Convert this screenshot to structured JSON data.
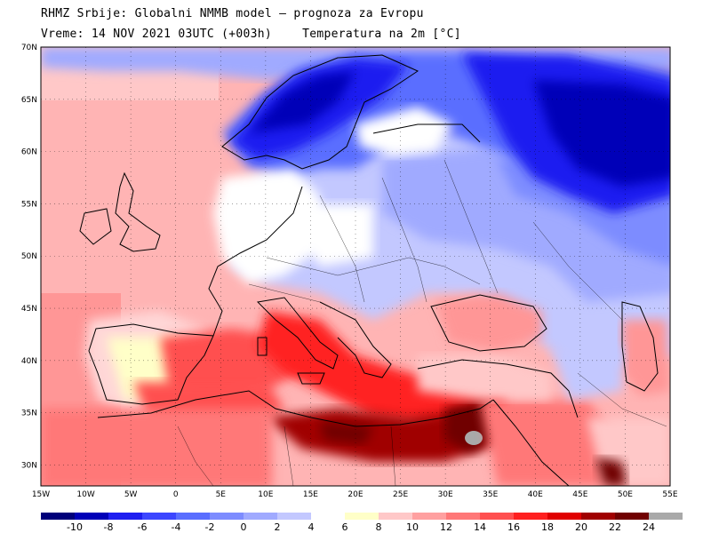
{
  "header": {
    "line1": "RHMZ Srbije: Globalni NMMB model — prognoza za Evropu",
    "line2_time": "Vreme: 14 NOV 2021 03UTC (+003h)",
    "line2_var": "Temperatura na 2m [°C]"
  },
  "map": {
    "lat_ticks": [
      "70N",
      "65N",
      "60N",
      "55N",
      "50N",
      "45N",
      "40N",
      "35N",
      "30N"
    ],
    "lon_ticks": [
      "15W",
      "10W",
      "5W",
      "0",
      "5E",
      "10E",
      "15E",
      "20E",
      "25E",
      "30E",
      "35E",
      "40E",
      "45E",
      "50E",
      "55E"
    ],
    "lat_range": [
      28,
      70
    ],
    "lon_range": [
      -15,
      55
    ],
    "grid": true
  },
  "colorbar": {
    "labels": [
      "-10",
      "-8",
      "-6",
      "-4",
      "-2",
      "0",
      "2",
      "4",
      "6",
      "8",
      "10",
      "12",
      "14",
      "16",
      "18",
      "20",
      "22",
      "24"
    ],
    "colors": [
      "#00007a",
      "#0000b8",
      "#1e1ef0",
      "#3c46ff",
      "#5a6eff",
      "#7d8cff",
      "#a0aaff",
      "#c3c8ff",
      "#ffffff",
      "#ffffc8",
      "#ffc8c8",
      "#ffa0a0",
      "#ff7878",
      "#ff5050",
      "#ff2020",
      "#e00000",
      "#a00000",
      "#700000",
      "#a9a9a9"
    ]
  }
}
